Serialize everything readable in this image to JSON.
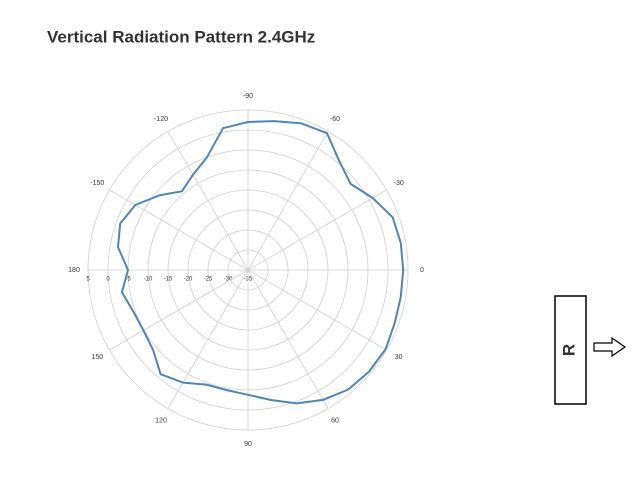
{
  "chart_data": {
    "type": "polar",
    "title": "Vertical Radiation Pattern 2.4GHz",
    "title_color": "#9b0a3c",
    "theta": [
      0,
      10,
      20,
      30,
      40,
      50,
      60,
      70,
      80,
      90,
      100,
      110,
      120,
      130,
      140,
      150,
      160,
      170,
      180,
      -170,
      -160,
      -150,
      -140,
      -130,
      -120,
      -110,
      -100,
      -90,
      -80,
      -70,
      -60,
      -50,
      -40,
      -30,
      -20,
      -10
    ],
    "values": [
      3.8,
      3.8,
      4,
      4.7,
      4.5,
      4,
      2.5,
      0.5,
      -2,
      -3.8,
      -4.5,
      -4.5,
      -2.5,
      -1,
      -4,
      -4.8,
      -4.5,
      -3,
      -5,
      -2,
      -1,
      -2.5,
      -6,
      -9.3,
      -7.5,
      -5,
      1,
      2,
      2.8,
      4,
      4.5,
      0.5,
      -1.5,
      1,
      3.5,
      3.8
    ],
    "color": "#4f86b5",
    "rlim": [
      -35,
      5
    ],
    "rticks": [
      5,
      0,
      -5,
      -10,
      -15,
      -20,
      -25,
      -30,
      -35
    ],
    "thetaticks": [
      0,
      30,
      60,
      90,
      120,
      150,
      180,
      -150,
      -120,
      -90,
      -60,
      -30
    ],
    "grid": true,
    "annotation": "R"
  }
}
